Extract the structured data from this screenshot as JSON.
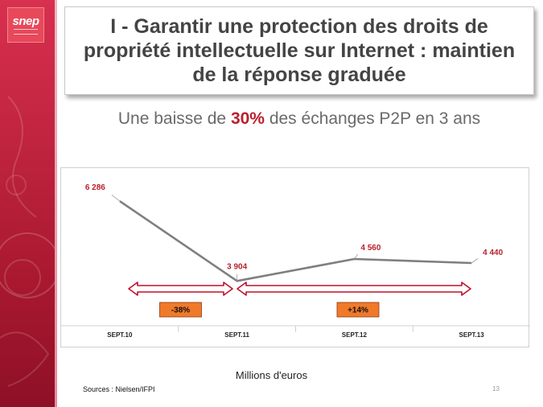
{
  "logo": {
    "text": "snep"
  },
  "title": "I - Garantir une protection des droits de propriété intellectuelle sur Internet : maintien de la réponse graduée",
  "subtitle": {
    "prefix": "Une baisse de ",
    "highlight": "30%",
    "suffix": " des échanges P2P en 3 ans"
  },
  "colors": {
    "brand": "#c0243f",
    "highlight": "#b8202e",
    "line": "#7f7f7f",
    "arrow": "#c0102a",
    "badge": "#f07a2a"
  },
  "chart_data": {
    "type": "line",
    "categories": [
      "SEPT.10",
      "SEPT.11",
      "SEPT.12",
      "SEPT.13"
    ],
    "values": [
      6286,
      3904,
      4560,
      4440
    ],
    "value_labels": [
      "6 286",
      "3 904",
      "4 560",
      "4 440"
    ],
    "ylim": [
      3600,
      6600
    ],
    "grid": false,
    "legend": "none",
    "annotations": [
      {
        "text": "-38%",
        "from": "SEPT.10",
        "to": "SEPT.11"
      },
      {
        "text": "+14%",
        "from": "SEPT.11",
        "to": "SEPT.13"
      }
    ]
  },
  "unit_caption": "Millions d'euros",
  "source": "Sources : Nielsen/IFPI",
  "page_number": "13"
}
